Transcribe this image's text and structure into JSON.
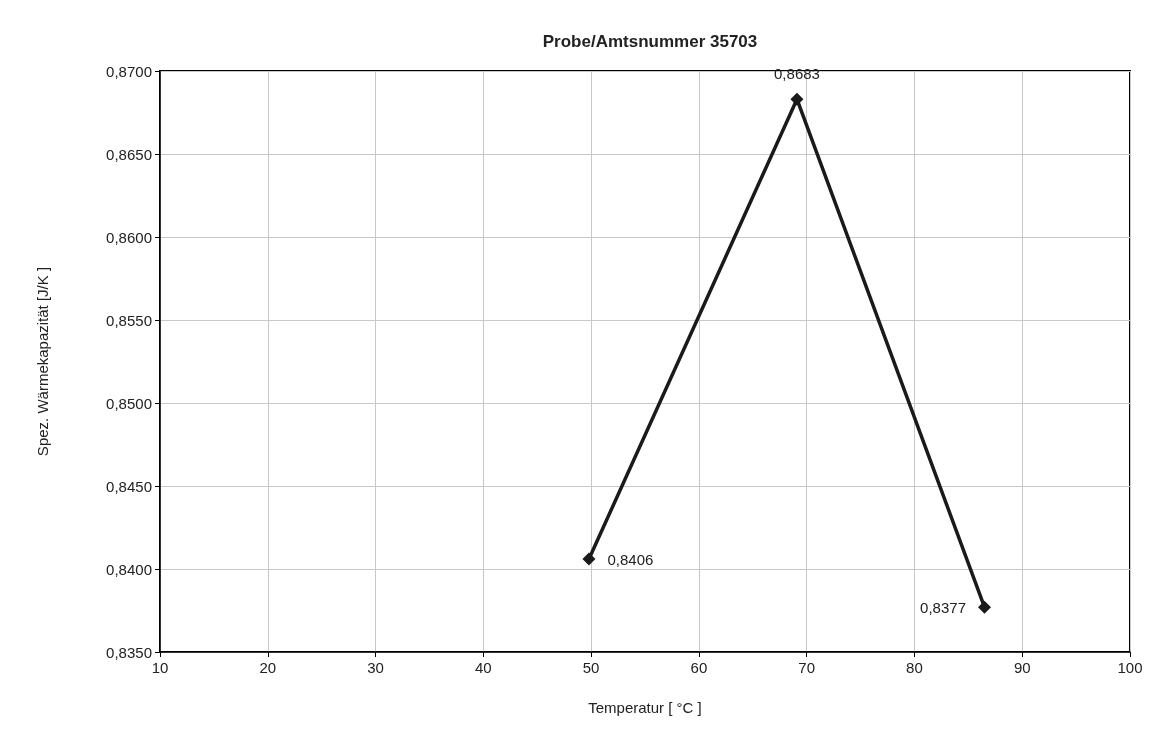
{
  "chart_data": {
    "type": "line",
    "title": "Probe/Amtsnummer 35703",
    "xlabel": "Temperatur [ °C ]",
    "ylabel": "Spez. Wärmekapazität [J/K ]",
    "x": [
      49.8,
      69.1,
      86.5
    ],
    "series": [
      {
        "color": "#1a1a1a",
        "values": [
          0.8406,
          0.8683,
          0.8377
        ],
        "value_labels": [
          "0,8406",
          "0,8683",
          "0,8377"
        ]
      }
    ],
    "xlim": [
      10,
      100
    ],
    "xticks": [
      10,
      20,
      30,
      40,
      50,
      60,
      70,
      80,
      90,
      100
    ],
    "ylim": [
      0.835,
      0.87
    ],
    "yticks": [
      {
        "value": 0.835,
        "label": "0,8350"
      },
      {
        "value": 0.84,
        "label": "0,8400"
      },
      {
        "value": 0.845,
        "label": "0,8450"
      },
      {
        "value": 0.85,
        "label": "0,8500"
      },
      {
        "value": 0.855,
        "label": "0,8550"
      },
      {
        "value": 0.86,
        "label": "0,8600"
      },
      {
        "value": 0.865,
        "label": "0,8650"
      },
      {
        "value": 0.87,
        "label": "0,8700"
      }
    ],
    "grid": true,
    "marker": "diamond",
    "line_style": "solid"
  }
}
